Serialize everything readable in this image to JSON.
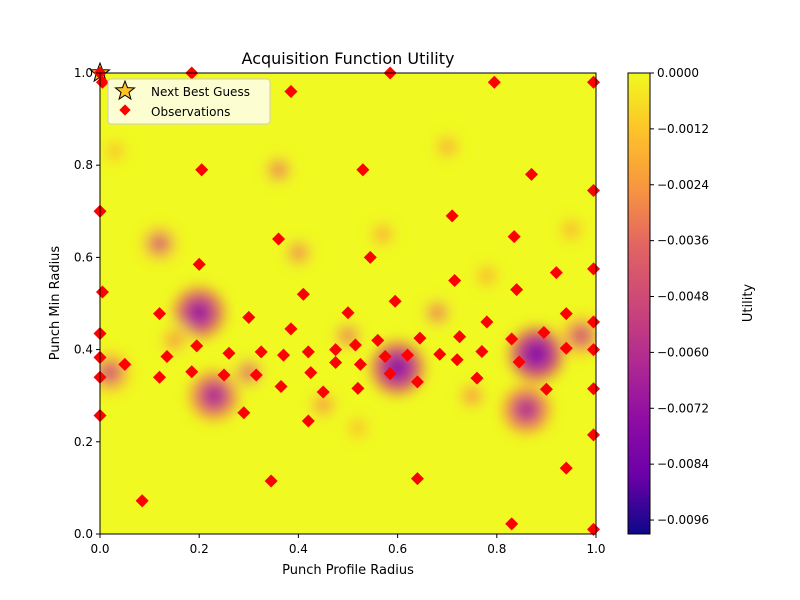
{
  "chart_data": {
    "type": "heatmap",
    "title": "Acquisition Function Utility",
    "xlabel": "Punch Profile Radius",
    "ylabel": "Punch Min Radius",
    "xlim": [
      0.0,
      1.0
    ],
    "ylim": [
      0.0,
      1.0
    ],
    "x_ticks": [
      "0.0",
      "0.2",
      "0.4",
      "0.6",
      "0.8",
      "1.0"
    ],
    "y_ticks": [
      "0.0",
      "0.2",
      "0.4",
      "0.6",
      "0.8",
      "1.0"
    ],
    "grid": false,
    "colormap": "plasma",
    "colorbar": {
      "label": "Utility",
      "range": [
        -0.0099,
        0.0
      ],
      "ticks": [
        "0.0000",
        "−0.0012",
        "−0.0024",
        "−0.0036",
        "−0.0048",
        "−0.0060",
        "−0.0072",
        "−0.0084",
        "−0.0096"
      ],
      "tick_values": [
        0.0,
        -0.0012,
        -0.0024,
        -0.0036,
        -0.0048,
        -0.006,
        -0.0072,
        -0.0084,
        -0.0096
      ]
    },
    "utility_regions": [
      {
        "x": 0.2,
        "y": 0.48,
        "min": -0.0068
      },
      {
        "x": 0.23,
        "y": 0.3,
        "min": -0.0062
      },
      {
        "x": 0.12,
        "y": 0.63,
        "min": -0.004
      },
      {
        "x": 0.36,
        "y": 0.79,
        "min": -0.003
      },
      {
        "x": 0.7,
        "y": 0.84,
        "min": -0.002
      },
      {
        "x": 0.6,
        "y": 0.36,
        "min": -0.0072
      },
      {
        "x": 0.88,
        "y": 0.39,
        "min": -0.0075
      },
      {
        "x": 0.86,
        "y": 0.27,
        "min": -0.006
      },
      {
        "x": 0.68,
        "y": 0.48,
        "min": -0.003
      },
      {
        "x": 0.02,
        "y": 0.35,
        "min": -0.0045
      },
      {
        "x": 0.97,
        "y": 0.43,
        "min": -0.0045
      },
      {
        "x": 0.4,
        "y": 0.61,
        "min": -0.0028
      },
      {
        "x": 0.57,
        "y": 0.65,
        "min": -0.002
      },
      {
        "x": 0.3,
        "y": 0.35,
        "min": -0.0035
      },
      {
        "x": 0.45,
        "y": 0.28,
        "min": -0.0025
      },
      {
        "x": 0.5,
        "y": 0.43,
        "min": -0.003
      },
      {
        "x": 0.78,
        "y": 0.56,
        "min": -0.0018
      },
      {
        "x": 0.95,
        "y": 0.66,
        "min": -0.0018
      },
      {
        "x": 0.03,
        "y": 0.83,
        "min": -0.0015
      },
      {
        "x": 0.75,
        "y": 0.3,
        "min": -0.0025
      },
      {
        "x": 0.15,
        "y": 0.42,
        "min": -0.0025
      },
      {
        "x": 0.52,
        "y": 0.23,
        "min": -0.0015
      }
    ],
    "legend": {
      "placement": "top-left",
      "entries": [
        "Next Best Guess",
        "Observations"
      ]
    },
    "series": [
      {
        "name": "Next Best Guess",
        "marker": "star",
        "color": "#ffc125",
        "points": [
          [
            0.0,
            1.0
          ]
        ]
      },
      {
        "name": "Observations",
        "marker": "diamond",
        "color": "#ff0000",
        "points": [
          [
            0.0,
            1.0
          ],
          [
            0.005,
            0.98
          ],
          [
            0.185,
            1.0
          ],
          [
            0.385,
            0.96
          ],
          [
            0.585,
            1.0
          ],
          [
            0.795,
            0.98
          ],
          [
            0.995,
            0.98
          ],
          [
            0.205,
            0.79
          ],
          [
            0.53,
            0.79
          ],
          [
            0.87,
            0.78
          ],
          [
            0.995,
            0.745
          ],
          [
            0.0,
            0.7
          ],
          [
            0.71,
            0.69
          ],
          [
            0.835,
            0.645
          ],
          [
            0.36,
            0.64
          ],
          [
            0.545,
            0.6
          ],
          [
            0.2,
            0.585
          ],
          [
            0.995,
            0.575
          ],
          [
            0.92,
            0.567
          ],
          [
            0.715,
            0.55
          ],
          [
            0.005,
            0.525
          ],
          [
            0.41,
            0.52
          ],
          [
            0.84,
            0.53
          ],
          [
            0.595,
            0.505
          ],
          [
            0.12,
            0.478
          ],
          [
            0.3,
            0.47
          ],
          [
            0.5,
            0.48
          ],
          [
            0.94,
            0.478
          ],
          [
            0.995,
            0.46
          ],
          [
            0.78,
            0.46
          ],
          [
            0.385,
            0.445
          ],
          [
            0.0,
            0.435
          ],
          [
            0.895,
            0.437
          ],
          [
            0.725,
            0.428
          ],
          [
            0.56,
            0.42
          ],
          [
            0.645,
            0.425
          ],
          [
            0.83,
            0.423
          ],
          [
            0.195,
            0.408
          ],
          [
            0.515,
            0.41
          ],
          [
            0.94,
            0.403
          ],
          [
            0.995,
            0.4
          ],
          [
            0.42,
            0.395
          ],
          [
            0.26,
            0.392
          ],
          [
            0.325,
            0.395
          ],
          [
            0.475,
            0.4
          ],
          [
            0.77,
            0.396
          ],
          [
            0.685,
            0.39
          ],
          [
            0.0,
            0.383
          ],
          [
            0.135,
            0.385
          ],
          [
            0.37,
            0.388
          ],
          [
            0.575,
            0.385
          ],
          [
            0.62,
            0.388
          ],
          [
            0.72,
            0.378
          ],
          [
            0.05,
            0.368
          ],
          [
            0.475,
            0.372
          ],
          [
            0.525,
            0.368
          ],
          [
            0.845,
            0.373
          ],
          [
            0.185,
            0.352
          ],
          [
            0.25,
            0.345
          ],
          [
            0.315,
            0.345
          ],
          [
            0.425,
            0.35
          ],
          [
            0.585,
            0.348
          ],
          [
            0.0,
            0.34
          ],
          [
            0.12,
            0.34
          ],
          [
            0.64,
            0.33
          ],
          [
            0.76,
            0.338
          ],
          [
            0.365,
            0.32
          ],
          [
            0.52,
            0.316
          ],
          [
            0.9,
            0.314
          ],
          [
            0.995,
            0.315
          ],
          [
            0.45,
            0.308
          ],
          [
            0.29,
            0.263
          ],
          [
            0.0,
            0.257
          ],
          [
            0.42,
            0.245
          ],
          [
            0.995,
            0.215
          ],
          [
            0.94,
            0.143
          ],
          [
            0.64,
            0.12
          ],
          [
            0.345,
            0.115
          ],
          [
            0.085,
            0.072
          ],
          [
            0.83,
            0.022
          ],
          [
            0.995,
            0.01
          ]
        ]
      }
    ]
  }
}
